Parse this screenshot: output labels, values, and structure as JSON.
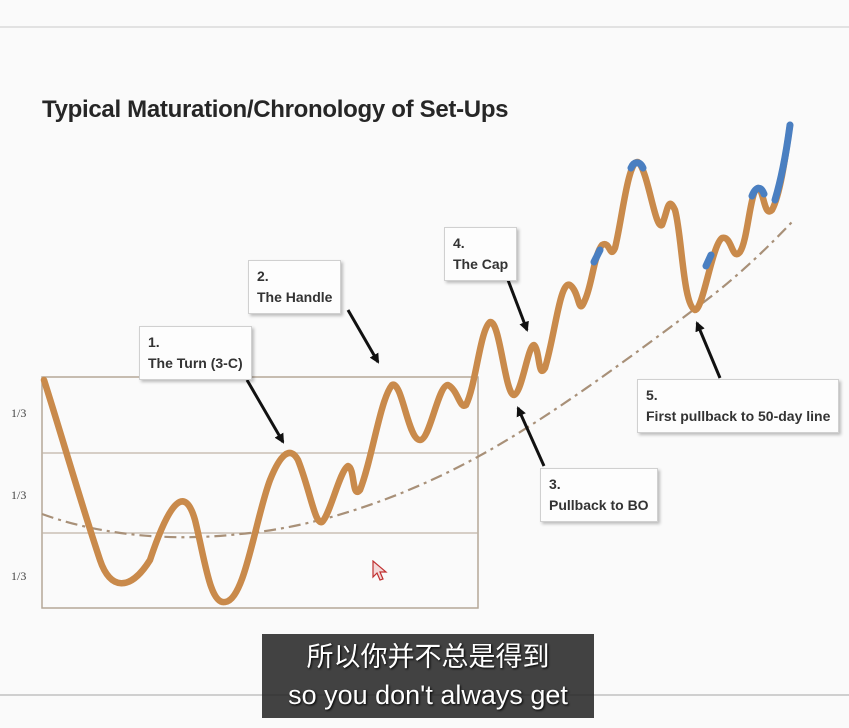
{
  "slide": {
    "title": "Typical Maturation/Chronology of Set-Ups"
  },
  "base_labels": [
    "1/3",
    "1/3",
    "1/3"
  ],
  "callouts": [
    {
      "id": "turn",
      "number": "1.",
      "label": "The Turn (3-C)"
    },
    {
      "id": "handle",
      "number": "2.",
      "label": "The Handle"
    },
    {
      "id": "pullback",
      "number": "3.",
      "label": "Pullback to BO"
    },
    {
      "id": "cap",
      "number": "4.",
      "label": "The Cap"
    },
    {
      "id": "first-pullback",
      "number": "5.",
      "label": "First pullback to 50-day line"
    }
  ],
  "subtitles": {
    "line_zh": "所以你并不总是得到",
    "line_en": "so you don't always get"
  },
  "colors": {
    "price_line": "#c98a4b",
    "price_highlight": "#4a7fc1",
    "moving_average": "#a89078",
    "base_box": "#b5a898"
  }
}
